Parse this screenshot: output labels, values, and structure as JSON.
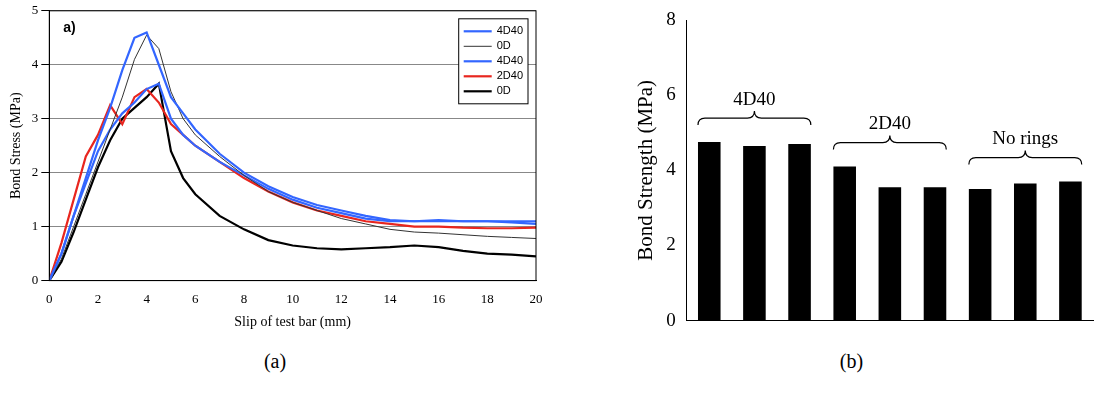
{
  "chart_data": [
    {
      "type": "line",
      "caption": "(a)",
      "annotations": [
        "a)"
      ],
      "xlabel": "Slip of test bar (mm)",
      "ylabel": "Bond Stress (MPa)",
      "x": [
        0,
        0.5,
        1,
        1.5,
        2,
        2.5,
        3,
        3.5,
        4,
        4.5,
        5,
        5.5,
        6,
        7,
        8,
        9,
        10,
        11,
        12,
        13,
        14,
        15,
        16,
        17,
        18,
        19,
        20
      ],
      "series": [
        {
          "name": "4D40",
          "color": "#3366ff",
          "line_style": "thick",
          "values": [
            0,
            0.5,
            1.2,
            1.9,
            2.6,
            3.2,
            3.9,
            4.5,
            4.6,
            4.0,
            3.4,
            3.1,
            2.8,
            2.35,
            2.0,
            1.75,
            1.55,
            1.4,
            1.3,
            1.2,
            1.12,
            1.1,
            1.12,
            1.1,
            1.1,
            1.08,
            1.05
          ]
        },
        {
          "name": "0D",
          "color": "#333333",
          "line_style": "thin",
          "values": [
            0,
            0.4,
            1.0,
            1.6,
            2.2,
            2.8,
            3.4,
            4.1,
            4.55,
            4.3,
            3.5,
            3.0,
            2.7,
            2.3,
            1.95,
            1.65,
            1.45,
            1.3,
            1.15,
            1.05,
            0.95,
            0.9,
            0.88,
            0.85,
            0.82,
            0.8,
            0.78
          ]
        },
        {
          "name": "4D40",
          "color": "#3366ff",
          "line_style": "thick",
          "values": [
            0,
            0.5,
            1.2,
            1.8,
            2.4,
            2.8,
            3.1,
            3.3,
            3.55,
            3.65,
            3.0,
            2.7,
            2.5,
            2.2,
            1.95,
            1.7,
            1.5,
            1.35,
            1.25,
            1.15,
            1.1,
            1.1,
            1.1,
            1.1,
            1.1,
            1.1,
            1.1
          ]
        },
        {
          "name": "2D40",
          "color": "#e8261f",
          "line_style": "thick",
          "values": [
            0,
            0.7,
            1.5,
            2.3,
            2.7,
            3.25,
            2.9,
            3.4,
            3.55,
            3.3,
            2.9,
            2.7,
            2.5,
            2.2,
            1.9,
            1.65,
            1.45,
            1.3,
            1.2,
            1.1,
            1.05,
            1.0,
            1.0,
            0.98,
            0.97,
            0.97,
            0.98
          ]
        },
        {
          "name": "0D",
          "color": "#000000",
          "line_style": "thick",
          "values": [
            0,
            0.35,
            0.9,
            1.5,
            2.1,
            2.6,
            3.0,
            3.2,
            3.4,
            3.65,
            2.4,
            1.9,
            1.6,
            1.2,
            0.95,
            0.75,
            0.65,
            0.6,
            0.58,
            0.6,
            0.62,
            0.65,
            0.62,
            0.55,
            0.5,
            0.48,
            0.45
          ]
        }
      ],
      "xlim": [
        0,
        20
      ],
      "xticks": [
        0,
        2,
        4,
        6,
        8,
        10,
        12,
        14,
        16,
        18,
        20
      ],
      "ylim": [
        0,
        5
      ],
      "yticks": [
        0,
        1,
        2,
        3,
        4,
        5
      ],
      "grid": "y",
      "legend": "top-right"
    },
    {
      "type": "bar",
      "caption": "(b)",
      "ylabel": "Bond Strength (MPa)",
      "categories": [
        null,
        null,
        null,
        null,
        null,
        null,
        null,
        null,
        null
      ],
      "values": [
        4.75,
        4.65,
        4.7,
        4.1,
        3.55,
        3.55,
        3.5,
        3.65,
        3.7
      ],
      "color": "#000000",
      "annotations": [
        {
          "text": "4D40",
          "from": 0,
          "to": 2
        },
        {
          "text": "2D40",
          "from": 3,
          "to": 5
        },
        {
          "text": "No rings",
          "from": 6,
          "to": 8
        }
      ],
      "ylim": [
        0,
        8
      ],
      "yticks": [
        0,
        2,
        4,
        6,
        8
      ],
      "grid": false,
      "tick_labels": "y"
    }
  ]
}
